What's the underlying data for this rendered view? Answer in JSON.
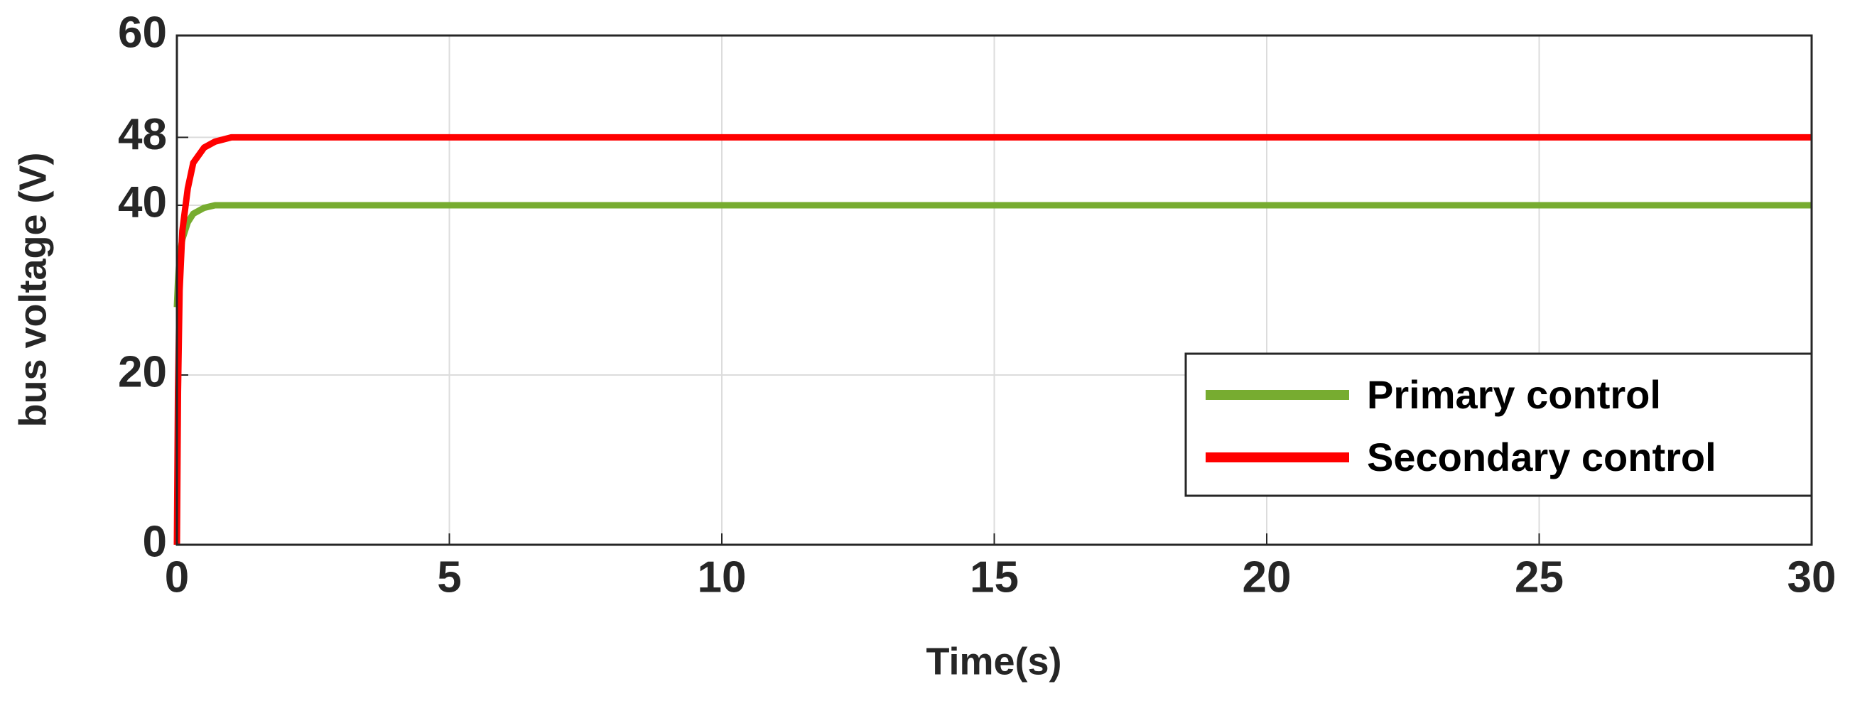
{
  "chart_data": {
    "type": "line",
    "x_label": "Time(s)",
    "y_label": "bus voltage (V)",
    "x": [
      0,
      0.02,
      0.05,
      0.1,
      0.2,
      0.3,
      0.5,
      0.7,
      1,
      1.5,
      2,
      5,
      10,
      15,
      20,
      25,
      30
    ],
    "series": [
      {
        "name": "Primary control",
        "color": "#77ac30",
        "values": [
          28,
          31,
          34,
          36,
          38,
          39,
          39.7,
          40,
          40,
          40,
          40,
          40,
          40,
          40,
          40,
          40,
          40
        ]
      },
      {
        "name": "Secondary control",
        "color": "#ff0000",
        "values": [
          0,
          18,
          30,
          37,
          42,
          45,
          46.8,
          47.5,
          48,
          48,
          48,
          48,
          48,
          48,
          48,
          48,
          48
        ]
      }
    ],
    "xlim": [
      0,
      30
    ],
    "xticks": [
      0,
      5,
      10,
      15,
      20,
      25,
      30
    ],
    "ylim": [
      0,
      60
    ],
    "yticks": [
      0,
      20,
      40,
      48,
      60
    ],
    "grid": true,
    "legend": "lower right"
  }
}
